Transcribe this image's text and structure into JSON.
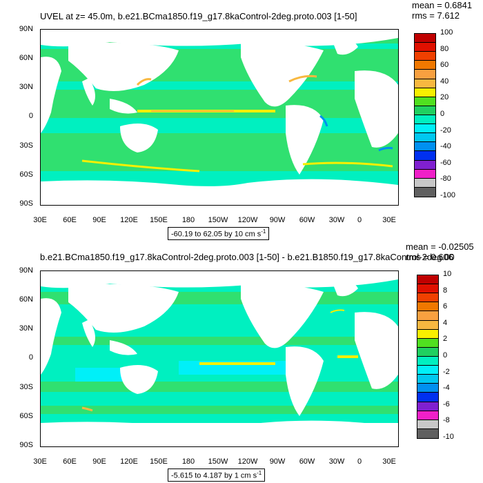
{
  "panel1": {
    "title": "UVEL at z=  45.0m, b.e21.BCma1850.f19_g17.8kaControl-2deg.proto.003 [1-50]",
    "mean": "mean = 0.6841",
    "rms": "rms = 7.612",
    "range": "-60.19 to 62.05 by 10 cm s",
    "range_exp": "-1",
    "colorbar_labels": [
      "100",
      "80",
      "60",
      "40",
      "20",
      "0",
      "-20",
      "-40",
      "-60",
      "-80",
      "-100"
    ]
  },
  "panel2": {
    "title": "b.e21.BCma1850.f19_g17.8kaControl-2deg.proto.003 [1-50] - b.e21.B1850.f19_g17.8kaControl-2deg.00",
    "mean": "mean = -0.02505",
    "rms": "rms = 0.606",
    "range": "-5.615 to 4.187 by 1 cm s",
    "range_exp": "-1",
    "colorbar_labels": [
      "10",
      "8",
      "6",
      "4",
      "2",
      "0",
      "-2",
      "-4",
      "-6",
      "-8",
      "-10"
    ]
  },
  "lat_labels": [
    "90N",
    "60N",
    "30N",
    "0",
    "30S",
    "60S",
    "90S"
  ],
  "lon_labels": [
    "30E",
    "60E",
    "90E",
    "120E",
    "150E",
    "180",
    "150W",
    "120W",
    "90W",
    "60W",
    "30W",
    "0",
    "30E"
  ],
  "colorbar_colors": [
    "#c00000",
    "#e01000",
    "#f04000",
    "#f07800",
    "#f8a040",
    "#f8b840",
    "#f8f000",
    "#50e020",
    "#20d060",
    "#00f0c0",
    "#00f0f8",
    "#00c8f0",
    "#0090f0",
    "#0030f0",
    "#8020d0",
    "#f020c8",
    "#c8c8c8",
    "#606060"
  ],
  "colors": {
    "ocean_main": "#30e070",
    "ocean_teal": "#00f0c0",
    "ocean_cyan": "#00f0f8",
    "yellow": "#f8f000",
    "orange": "#f8b840",
    "blue": "#0090f0",
    "land": "#ffffff"
  }
}
